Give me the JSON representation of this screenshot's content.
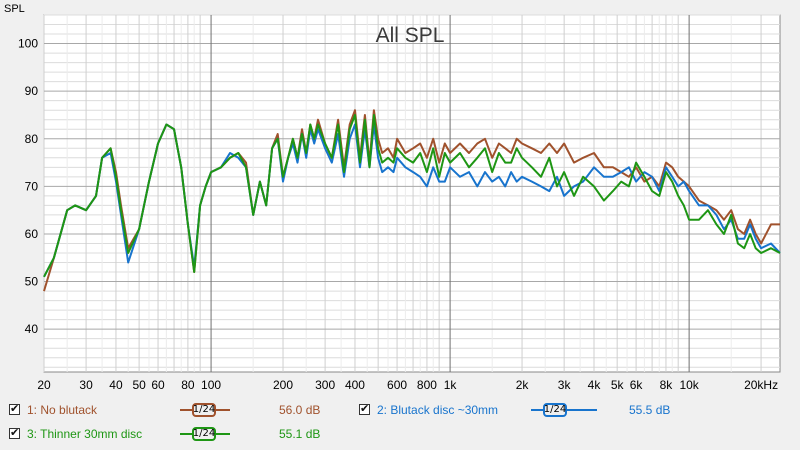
{
  "chart_data": {
    "type": "line",
    "title": "All SPL",
    "ylabel": "SPL",
    "xlabel": "",
    "x_scale": "log",
    "xlim": [
      20,
      24000
    ],
    "ylim": [
      31,
      106
    ],
    "grid": true,
    "x_tick_labels": [
      {
        "v": 20,
        "t": "20"
      },
      {
        "v": 30,
        "t": "30"
      },
      {
        "v": 40,
        "t": "40"
      },
      {
        "v": 50,
        "t": "50"
      },
      {
        "v": 60,
        "t": "60"
      },
      {
        "v": 80,
        "t": "80"
      },
      {
        "v": 100,
        "t": "100"
      },
      {
        "v": 200,
        "t": "200"
      },
      {
        "v": 300,
        "t": "300"
      },
      {
        "v": 400,
        "t": "400"
      },
      {
        "v": 600,
        "t": "600"
      },
      {
        "v": 800,
        "t": "800"
      },
      {
        "v": 1000,
        "t": "1k"
      },
      {
        "v": 2000,
        "t": "2k"
      },
      {
        "v": 3000,
        "t": "3k"
      },
      {
        "v": 4000,
        "t": "4k"
      },
      {
        "v": 5000,
        "t": "5k"
      },
      {
        "v": 6000,
        "t": "6k"
      },
      {
        "v": 8000,
        "t": "8k"
      },
      {
        "v": 10000,
        "t": "10k"
      },
      {
        "v": 20000,
        "t": "20kHz"
      }
    ],
    "y_tick_labels": [
      "40",
      "50",
      "60",
      "70",
      "80",
      "90",
      "100"
    ],
    "y_ticks": [
      40,
      50,
      60,
      70,
      80,
      90,
      100
    ],
    "series": [
      {
        "name": "1: No blutack",
        "color": "#a0522d",
        "x": [
          20,
          22,
          25,
          27,
          30,
          33,
          35,
          38,
          40,
          42,
          45,
          50,
          55,
          60,
          65,
          70,
          75,
          80,
          85,
          90,
          95,
          100,
          110,
          120,
          130,
          140,
          150,
          160,
          170,
          180,
          190,
          200,
          210,
          220,
          230,
          240,
          250,
          260,
          270,
          280,
          300,
          320,
          340,
          360,
          380,
          400,
          420,
          440,
          460,
          480,
          500,
          520,
          550,
          580,
          600,
          650,
          700,
          750,
          800,
          850,
          900,
          950,
          1000,
          1100,
          1200,
          1300,
          1400,
          1500,
          1600,
          1700,
          1800,
          1900,
          2000,
          2200,
          2400,
          2600,
          2800,
          3000,
          3300,
          3600,
          4000,
          4400,
          4800,
          5200,
          5600,
          6000,
          6500,
          7000,
          7500,
          8000,
          8500,
          9000,
          9500,
          10000,
          11000,
          12000,
          13000,
          14000,
          15000,
          16000,
          17000,
          18000,
          19000,
          20000,
          22000,
          24000
        ],
        "y": [
          48,
          55,
          65,
          66,
          65,
          68,
          76,
          78,
          73,
          66,
          57,
          61,
          71,
          79,
          83,
          82,
          74,
          62,
          52,
          66,
          70,
          73,
          74,
          76,
          77,
          75,
          64,
          71,
          66,
          78,
          81,
          72,
          76,
          80,
          76,
          82,
          77,
          83,
          80,
          84,
          79,
          76,
          84,
          74,
          83,
          86,
          76,
          85,
          75,
          86,
          80,
          77,
          78,
          76,
          80,
          77,
          78,
          79,
          76,
          80,
          75,
          79,
          77,
          79,
          77,
          79,
          80,
          76,
          79,
          78,
          77,
          80,
          79,
          78,
          77,
          79,
          77,
          79,
          75,
          76,
          77,
          74,
          74,
          73,
          72,
          74,
          71,
          72,
          70,
          75,
          74,
          72,
          71,
          70,
          67,
          66,
          65,
          63,
          65,
          61,
          60,
          63,
          60,
          58,
          62,
          62
        ],
        "value_label": "56.0 dB"
      },
      {
        "name": "2: Blutack disc ~30mm",
        "color": "#1874cd",
        "x": [
          20,
          22,
          25,
          27,
          30,
          33,
          35,
          38,
          40,
          42,
          45,
          50,
          55,
          60,
          65,
          70,
          75,
          80,
          85,
          90,
          95,
          100,
          110,
          120,
          130,
          140,
          150,
          160,
          170,
          180,
          190,
          200,
          210,
          220,
          230,
          240,
          250,
          260,
          270,
          280,
          300,
          320,
          340,
          360,
          380,
          400,
          420,
          440,
          460,
          480,
          500,
          520,
          550,
          580,
          600,
          650,
          700,
          750,
          800,
          850,
          900,
          950,
          1000,
          1100,
          1200,
          1300,
          1400,
          1500,
          1600,
          1700,
          1800,
          1900,
          2000,
          2200,
          2400,
          2600,
          2800,
          3000,
          3300,
          3600,
          4000,
          4400,
          4800,
          5200,
          5600,
          6000,
          6500,
          7000,
          7500,
          8000,
          8500,
          9000,
          9500,
          10000,
          11000,
          12000,
          13000,
          14000,
          15000,
          16000,
          17000,
          18000,
          19000,
          20000,
          22000,
          24000
        ],
        "y": [
          51,
          55,
          65,
          66,
          65,
          68,
          76,
          77,
          71,
          64,
          54,
          61,
          71,
          79,
          83,
          82,
          74,
          62,
          53,
          66,
          70,
          73,
          74,
          77,
          76,
          74,
          64,
          71,
          66,
          78,
          80,
          71,
          76,
          79,
          75,
          81,
          76,
          82,
          79,
          82,
          78,
          75,
          81,
          72,
          80,
          83,
          74,
          82,
          74,
          83,
          76,
          73,
          74,
          73,
          76,
          74,
          73,
          72,
          70,
          74,
          71,
          71,
          74,
          72,
          73,
          70,
          73,
          71,
          72,
          70,
          73,
          71,
          72,
          71,
          70,
          69,
          72,
          68,
          70,
          71,
          74,
          72,
          72,
          73,
          74,
          71,
          73,
          72,
          69,
          74,
          72,
          70,
          71,
          69,
          66,
          66,
          64,
          61,
          63,
          59,
          59,
          62,
          59,
          57,
          58,
          56
        ],
        "value_label": "55.5 dB"
      },
      {
        "name": "3: Thinner 30mm disc",
        "color": "#1e9614",
        "x": [
          20,
          22,
          25,
          27,
          30,
          33,
          35,
          38,
          40,
          42,
          45,
          50,
          55,
          60,
          65,
          70,
          75,
          80,
          85,
          90,
          95,
          100,
          110,
          120,
          130,
          140,
          150,
          160,
          170,
          180,
          190,
          200,
          210,
          220,
          230,
          240,
          250,
          260,
          270,
          280,
          300,
          320,
          340,
          360,
          380,
          400,
          420,
          440,
          460,
          480,
          500,
          520,
          550,
          580,
          600,
          650,
          700,
          750,
          800,
          850,
          900,
          950,
          1000,
          1100,
          1200,
          1300,
          1400,
          1500,
          1600,
          1700,
          1800,
          1900,
          2000,
          2200,
          2400,
          2600,
          2800,
          3000,
          3300,
          3600,
          4000,
          4400,
          4800,
          5200,
          5600,
          6000,
          6500,
          7000,
          7500,
          8000,
          8500,
          9000,
          9500,
          10000,
          11000,
          12000,
          13000,
          14000,
          15000,
          16000,
          17000,
          18000,
          19000,
          20000,
          22000,
          24000
        ],
        "y": [
          51,
          55,
          65,
          66,
          65,
          68,
          76,
          78,
          72,
          65,
          56,
          61,
          71,
          79,
          83,
          82,
          74,
          62,
          52,
          66,
          70,
          73,
          74,
          76,
          77,
          74,
          64,
          71,
          66,
          78,
          80,
          72,
          76,
          80,
          76,
          81,
          77,
          83,
          80,
          83,
          79,
          76,
          83,
          73,
          82,
          85,
          75,
          84,
          74,
          85,
          78,
          75,
          76,
          75,
          78,
          76,
          75,
          77,
          73,
          78,
          72,
          77,
          75,
          77,
          74,
          76,
          78,
          73,
          77,
          75,
          75,
          78,
          76,
          74,
          72,
          76,
          70,
          73,
          68,
          72,
          70,
          67,
          69,
          71,
          70,
          75,
          72,
          69,
          68,
          73,
          71,
          68,
          66,
          63,
          63,
          65,
          62,
          60,
          64,
          58,
          57,
          60,
          57,
          56,
          57,
          56
        ],
        "value_label": "55.1 dB"
      }
    ]
  },
  "legend": {
    "smoothing_label": "1/24"
  }
}
